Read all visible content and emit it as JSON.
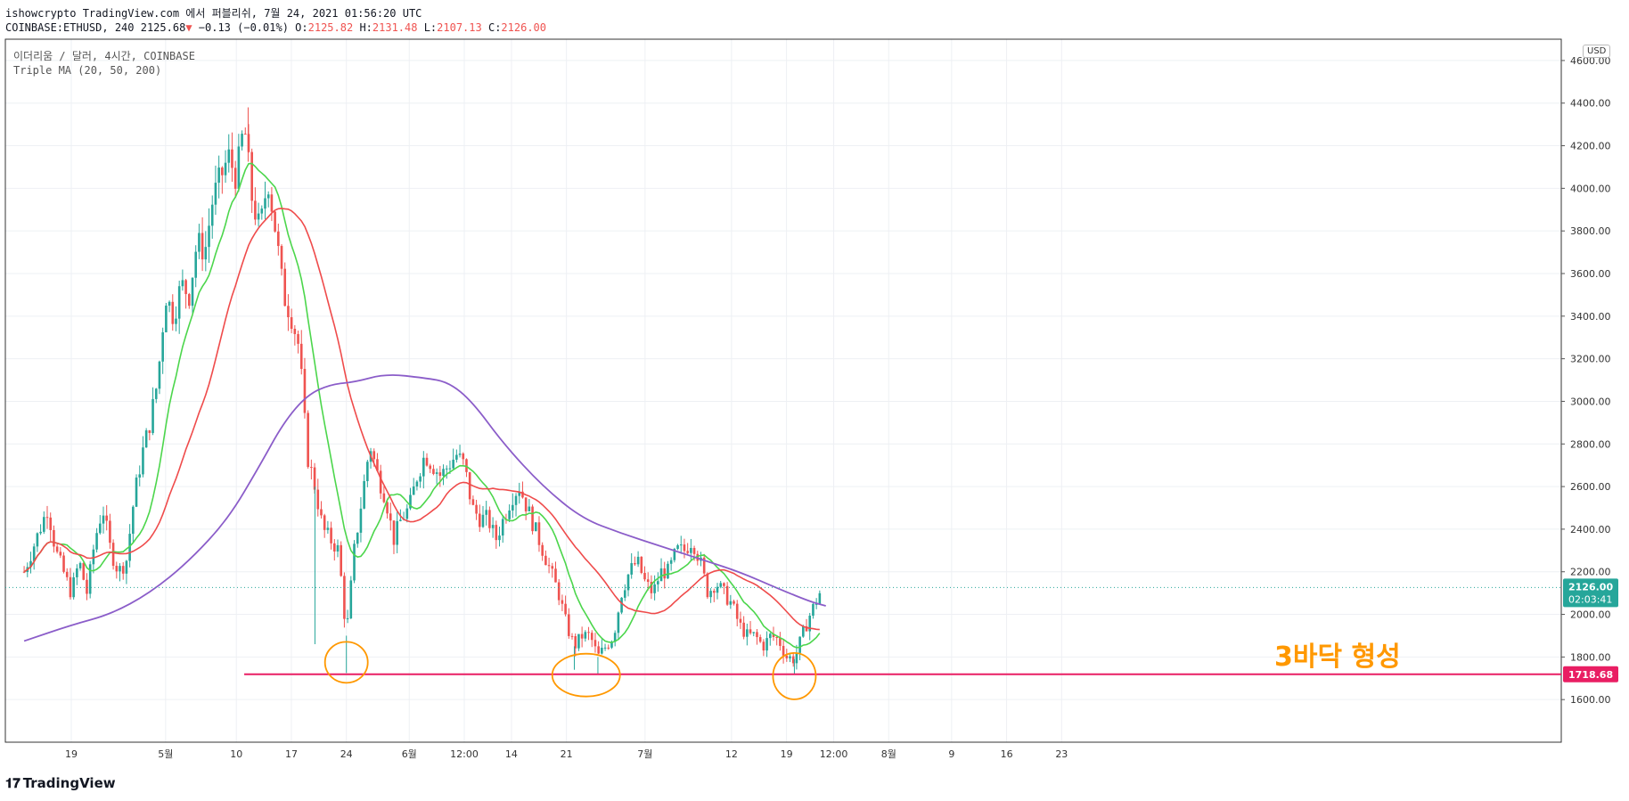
{
  "header": {
    "line1": "ishowcrypto TradingView.com 에서 퍼블리쉬, 7월 24, 2021 01:56:20 UTC",
    "symbol": "COINBASE:ETHUSD, 240",
    "last": "2125.68",
    "change": "−0.13 (−0.01%)",
    "o_label": "O:",
    "o_value": "2125.82",
    "h_label": "H:",
    "h_value": "2131.48",
    "l_label": "L:",
    "l_value": "2107.13",
    "c_label": "C:",
    "c_value": "2126.00"
  },
  "legend": {
    "title": "이더리움 / 달러, 4시간, COINBASE",
    "indicator": "Triple MA (20, 50, 200)"
  },
  "currency_badge": "USD",
  "annotation": "3바닥 형성",
  "logo": "TradingView",
  "chart_data": {
    "type": "candlestick",
    "price_axis": {
      "ticks": [
        4600,
        4400,
        4200,
        4000,
        3800,
        3600,
        3400,
        3200,
        3000,
        2800,
        2600,
        2400,
        2200,
        2000,
        1800,
        1600
      ],
      "range": [
        1400,
        4700
      ]
    },
    "time_axis": {
      "ticks": [
        {
          "label": "19",
          "t": 0
        },
        {
          "label": "5월",
          "t": 12
        },
        {
          "label": "10",
          "t": 21
        },
        {
          "label": "17",
          "t": 28
        },
        {
          "label": "24",
          "t": 35
        },
        {
          "label": "6월",
          "t": 43
        },
        {
          "label": "12:00",
          "t": 50
        },
        {
          "label": "14",
          "t": 56
        },
        {
          "label": "21",
          "t": 63
        },
        {
          "label": "7월",
          "t": 73
        },
        {
          "label": "12",
          "t": 84
        },
        {
          "label": "19",
          "t": 91
        },
        {
          "label": "12:00",
          "t": 97
        },
        {
          "label": "8월",
          "t": 104
        },
        {
          "label": "9",
          "t": 112
        },
        {
          "label": "16",
          "t": 119
        },
        {
          "label": "23",
          "t": 126
        }
      ]
    },
    "price_path": [
      [
        -6,
        2200
      ],
      [
        -4,
        2400
      ],
      [
        -3,
        2500
      ],
      [
        -2,
        2300
      ],
      [
        -1,
        2200
      ],
      [
        0,
        2100
      ],
      [
        1,
        2250
      ],
      [
        2,
        2100
      ],
      [
        3,
        2350
      ],
      [
        4,
        2500
      ],
      [
        5,
        2300
      ],
      [
        6,
        2200
      ],
      [
        7,
        2250
      ],
      [
        8,
        2550
      ],
      [
        9,
        2750
      ],
      [
        10,
        2900
      ],
      [
        11,
        3100
      ],
      [
        12,
        3500
      ],
      [
        13,
        3400
      ],
      [
        14,
        3550
      ],
      [
        15,
        3500
      ],
      [
        16,
        3750
      ],
      [
        17,
        3700
      ],
      [
        18,
        3950
      ],
      [
        19,
        4050
      ],
      [
        20,
        4150
      ],
      [
        21,
        4050
      ],
      [
        22,
        4300
      ],
      [
        23,
        3950
      ],
      [
        24,
        3800
      ],
      [
        25,
        4050
      ],
      [
        26,
        3800
      ],
      [
        27,
        3500
      ],
      [
        28,
        3400
      ],
      [
        29,
        3250
      ],
      [
        30,
        2750
      ],
      [
        31,
        2600
      ],
      [
        32,
        2400
      ],
      [
        33,
        2350
      ],
      [
        34,
        2300
      ],
      [
        35,
        1900
      ],
      [
        36,
        2300
      ],
      [
        37,
        2550
      ],
      [
        38,
        2800
      ],
      [
        39,
        2650
      ],
      [
        40,
        2550
      ],
      [
        41,
        2350
      ],
      [
        42,
        2450
      ],
      [
        43,
        2500
      ],
      [
        44,
        2650
      ],
      [
        45,
        2750
      ],
      [
        46,
        2700
      ],
      [
        47,
        2650
      ],
      [
        48,
        2700
      ],
      [
        49,
        2750
      ],
      [
        50,
        2700
      ],
      [
        51,
        2500
      ],
      [
        52,
        2450
      ],
      [
        53,
        2450
      ],
      [
        54,
        2350
      ],
      [
        55,
        2450
      ],
      [
        56,
        2550
      ],
      [
        57,
        2600
      ],
      [
        58,
        2500
      ],
      [
        59,
        2400
      ],
      [
        60,
        2300
      ],
      [
        61,
        2200
      ],
      [
        62,
        2100
      ],
      [
        63,
        1950
      ],
      [
        64,
        1850
      ],
      [
        65,
        1900
      ],
      [
        66,
        1900
      ],
      [
        67,
        1800
      ],
      [
        68,
        1850
      ],
      [
        69,
        1900
      ],
      [
        70,
        2100
      ],
      [
        71,
        2200
      ],
      [
        72,
        2250
      ],
      [
        73,
        2150
      ],
      [
        74,
        2100
      ],
      [
        75,
        2200
      ],
      [
        76,
        2200
      ],
      [
        77,
        2300
      ],
      [
        78,
        2300
      ],
      [
        79,
        2350
      ],
      [
        80,
        2250
      ],
      [
        81,
        2100
      ],
      [
        82,
        2150
      ],
      [
        83,
        2100
      ],
      [
        84,
        2050
      ],
      [
        85,
        1950
      ],
      [
        86,
        1900
      ],
      [
        87,
        1900
      ],
      [
        88,
        1850
      ],
      [
        89,
        1900
      ],
      [
        90,
        1880
      ],
      [
        91,
        1800
      ],
      [
        92,
        1790
      ],
      [
        93,
        1900
      ],
      [
        94,
        2000
      ],
      [
        95,
        2080
      ],
      [
        95.5,
        2126
      ]
    ],
    "spikes": [
      {
        "t": 31,
        "low": 1860
      },
      {
        "t": 35,
        "low": 1725
      },
      {
        "t": 64,
        "low": 1740
      },
      {
        "t": 67,
        "low": 1720
      },
      {
        "t": 92,
        "low": 1718
      },
      {
        "t": 22.5,
        "high": 4380
      }
    ],
    "ma20_color": "#4cd64c",
    "ma50_color": "#ef4b4b",
    "ma200_color": "#8b5dc9",
    "ma200_path": [
      [
        -6,
        1875
      ],
      [
        0,
        1950
      ],
      [
        5,
        2000
      ],
      [
        10,
        2100
      ],
      [
        15,
        2250
      ],
      [
        20,
        2450
      ],
      [
        24,
        2700
      ],
      [
        27,
        2900
      ],
      [
        30,
        3030
      ],
      [
        33,
        3080
      ],
      [
        36,
        3090
      ],
      [
        40,
        3130
      ],
      [
        45,
        3110
      ],
      [
        48,
        3090
      ],
      [
        51,
        3000
      ],
      [
        55,
        2800
      ],
      [
        60,
        2600
      ],
      [
        65,
        2450
      ],
      [
        70,
        2380
      ],
      [
        75,
        2320
      ],
      [
        80,
        2260
      ],
      [
        85,
        2200
      ],
      [
        90,
        2120
      ],
      [
        94,
        2060
      ],
      [
        96,
        2040
      ]
    ],
    "support_line": {
      "value": 1718.68,
      "label": "1718.68",
      "color": "#e91e63",
      "t_start": 22
    },
    "last_price": {
      "value": 2126.0,
      "label": "2126.00",
      "countdown": "02:03:41",
      "color": "#26a69a"
    },
    "markers": [
      {
        "t": 35,
        "price": 1775
      },
      {
        "t": 65.5,
        "price": 1715
      },
      {
        "t": 92,
        "price": 1710
      }
    ],
    "marker_color": "#ff9800"
  }
}
